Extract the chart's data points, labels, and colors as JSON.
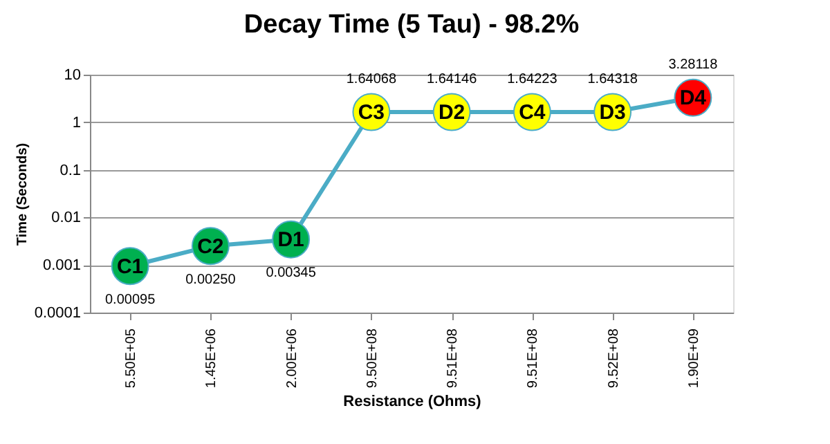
{
  "chart_data": {
    "type": "line",
    "title": "Decay Time (5 Tau) - 98.2%",
    "xlabel": "Resistance  (Ohms)",
    "ylabel": "Time (Seconds)",
    "categories": [
      "5.50E+05",
      "1.45E+06",
      "2.00E+06",
      "9.50E+08",
      "9.51E+08",
      "9.51E+08",
      "9.52E+08",
      "1.90E+09"
    ],
    "series": [
      {
        "color": "#4bacc6",
        "values": [
          0.00095,
          0.0025,
          0.00345,
          1.64068,
          1.64146,
          1.64223,
          1.64318,
          3.28118
        ],
        "colors": [
          "#00b050",
          "#00b050",
          "#00b050",
          "#ffff00",
          "#ffff00",
          "#ffff00",
          "#ffff00",
          "#ff0000"
        ],
        "value_labels": [
          "0.00095",
          "0.00250",
          "0.00345",
          "1.64068",
          "1.64146",
          "1.64223",
          "1.64318",
          "3.28118"
        ]
      }
    ],
    "annotations": [
      "C1",
      "C2",
      "D1",
      "C3",
      "D2",
      "C4",
      "D3",
      "D4"
    ],
    "log": "y",
    "ylim": [
      0.0001,
      10
    ],
    "yticks": [
      0.0001,
      0.001,
      0.01,
      0.1,
      1,
      10
    ],
    "grid": "y",
    "marker": "circle",
    "line_style": "solid"
  }
}
